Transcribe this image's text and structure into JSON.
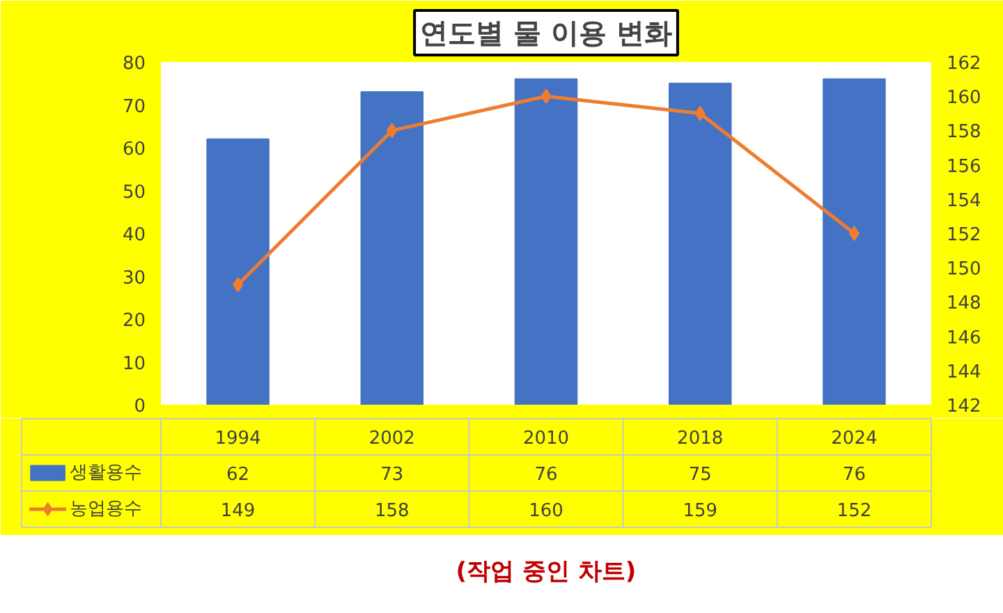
{
  "chart_data": {
    "type": "bar",
    "title": "연도별 물 이용 변화",
    "categories": [
      "1994",
      "2002",
      "2010",
      "2018",
      "2024"
    ],
    "series": [
      {
        "name": "생활용수",
        "color": "#4472c4",
        "values": [
          62,
          73,
          76,
          75,
          76
        ]
      },
      {
        "name": "농업용수",
        "type": "line",
        "axis": "y2",
        "color": "#ed7d31",
        "marker": "diamond",
        "values": [
          149,
          158,
          160,
          159,
          152
        ]
      }
    ],
    "ylim": [
      0,
      80
    ],
    "yticks": [
      0,
      10,
      20,
      30,
      40,
      50,
      60,
      70,
      80
    ],
    "y2lim": [
      142,
      162
    ],
    "y2ticks": [
      142,
      144,
      146,
      148,
      150,
      152,
      154,
      156,
      158,
      160,
      162
    ],
    "grid": false,
    "legend": "bottom",
    "data_labels": true,
    "annotations": [
      "(작업 중인 차트)"
    ]
  }
}
